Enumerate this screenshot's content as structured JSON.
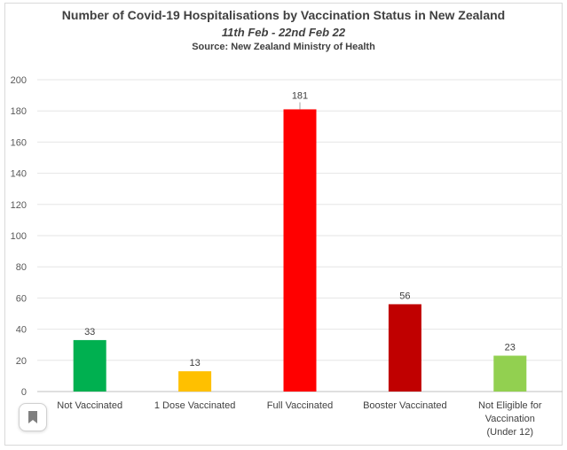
{
  "chart_data": {
    "type": "bar",
    "title": "Number of Covid-19 Hospitalisations by Vaccination Status in New Zealand",
    "subtitle": "11th Feb - 22nd Feb 22",
    "source": "Source: New Zealand Ministry of Health",
    "categories": [
      "Not Vaccinated",
      "1 Dose Vaccinated",
      "Full Vaccinated",
      "Booster Vaccinated",
      "Not Eligible for Vaccination (Under 12)"
    ],
    "values": [
      33,
      13,
      181,
      56,
      23
    ],
    "colors": [
      "#00b050",
      "#ffc000",
      "#ff0000",
      "#c00000",
      "#92d050"
    ],
    "ylim": [
      0,
      200
    ],
    "yticks": [
      0,
      20,
      40,
      60,
      80,
      100,
      120,
      140,
      160,
      180,
      200
    ],
    "grid": true,
    "legend": "none",
    "xlabel": "",
    "ylabel": ""
  },
  "ui": {
    "bookmark_icon": "bookmark-icon"
  }
}
